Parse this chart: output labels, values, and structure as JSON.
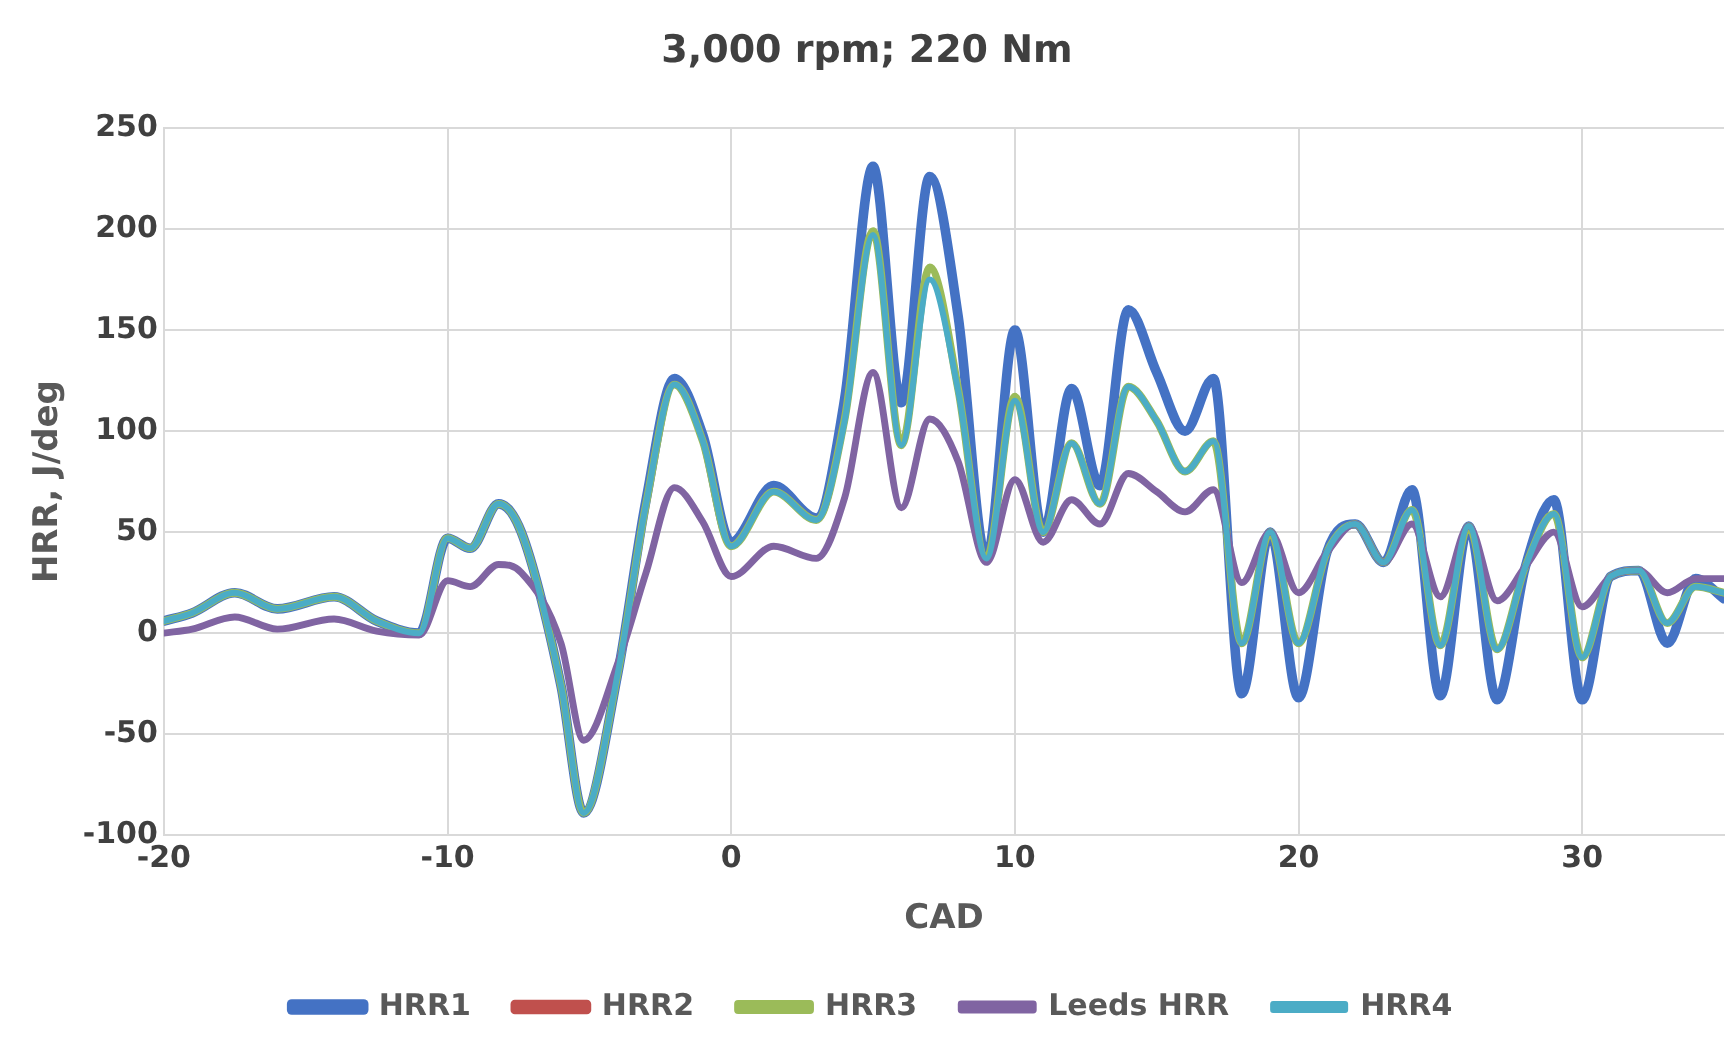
{
  "chart_data": {
    "type": "line",
    "title": "3,000 rpm; 220 Nm",
    "xlabel": "CAD",
    "ylabel": "HRR, J/deg",
    "x": [
      -20,
      -19,
      -17.5,
      -16,
      -14,
      -12.5,
      -11,
      -10,
      -9.2,
      -8.2,
      -7.4,
      -6,
      -5.2,
      -4,
      -3,
      -2,
      -1,
      0,
      1.5,
      3,
      4,
      5,
      6,
      7,
      8,
      9,
      10,
      11,
      12,
      13,
      14,
      15,
      16,
      17,
      18,
      19,
      20,
      21,
      22,
      23,
      24,
      25,
      26,
      27,
      28,
      29,
      30,
      31,
      32,
      33,
      34,
      35
    ],
    "series": [
      {
        "name": "HRR1",
        "color": "#4472c4",
        "values": [
          6,
          10,
          20,
          12,
          18,
          6,
          0,
          47,
          42,
          64,
          50,
          -26,
          -89,
          -20,
          66,
          126,
          98,
          45,
          73,
          57,
          116,
          231,
          114,
          226,
          157,
          37,
          150,
          50,
          121,
          73,
          160,
          129,
          100,
          126,
          -30,
          50,
          -32,
          40,
          54,
          35,
          71,
          -31,
          53,
          -33,
          33,
          66,
          -33,
          28,
          31,
          -5,
          27,
          17
        ]
      },
      {
        "name": "HRR2",
        "color": "#c0504d",
        "values": [
          null,
          null,
          null,
          null,
          null,
          null,
          null,
          null,
          null,
          null,
          null,
          null,
          null,
          null,
          null,
          null,
          null,
          null,
          null,
          null,
          null,
          null,
          null,
          null,
          null,
          null,
          null,
          null,
          null,
          null,
          null,
          null,
          null,
          null,
          null,
          null,
          null,
          null,
          null,
          null,
          null,
          null,
          null,
          null,
          null,
          null,
          null,
          null,
          null,
          null,
          null,
          null
        ]
      },
      {
        "name": "HRR3",
        "color": "#9bbb59",
        "values": [
          6,
          10,
          20,
          12,
          18,
          6,
          0,
          47,
          42,
          64,
          50,
          -26,
          -89,
          -20,
          64,
          123,
          95,
          43,
          70,
          56,
          106,
          199,
          93,
          181,
          121,
          37,
          117,
          50,
          94,
          64,
          122,
          105,
          80,
          95,
          -5,
          50,
          -5,
          40,
          54,
          35,
          61,
          -6,
          53,
          -8,
          33,
          59,
          -12,
          28,
          31,
          5,
          23,
          20
        ]
      },
      {
        "name": "Leeds HRR",
        "color": "#8064a2",
        "values": [
          0,
          2,
          8,
          2,
          7,
          1,
          -1,
          26,
          23,
          34,
          30,
          -5,
          -53,
          -15,
          30,
          72,
          55,
          28,
          43,
          37,
          67,
          129,
          62,
          106,
          85,
          35,
          76,
          45,
          66,
          54,
          79,
          70,
          60,
          71,
          25,
          50,
          20,
          40,
          54,
          35,
          54,
          18,
          53,
          16,
          33,
          50,
          13,
          28,
          31,
          20,
          27,
          27
        ]
      },
      {
        "name": "HRR4",
        "color": "#4bacc6",
        "values": [
          6,
          10,
          20,
          12,
          18,
          6,
          0,
          47,
          42,
          64,
          50,
          -26,
          -89,
          -20,
          64,
          123,
          95,
          43,
          70,
          56,
          105,
          197,
          93,
          175,
          120,
          37,
          115,
          50,
          94,
          64,
          122,
          105,
          80,
          95,
          -5,
          50,
          -5,
          40,
          54,
          35,
          61,
          -6,
          53,
          -8,
          33,
          59,
          -12,
          28,
          31,
          5,
          23,
          20
        ]
      }
    ],
    "xlim": [
      -20,
      35
    ],
    "xticks": [
      -20,
      -10,
      0,
      10,
      20,
      30
    ],
    "ylim": [
      -100,
      250
    ],
    "yticks": [
      -100,
      -50,
      0,
      50,
      100,
      150,
      200,
      250
    ],
    "grid": true,
    "legend": "bottom",
    "marker": "none",
    "line_style": "solid"
  }
}
